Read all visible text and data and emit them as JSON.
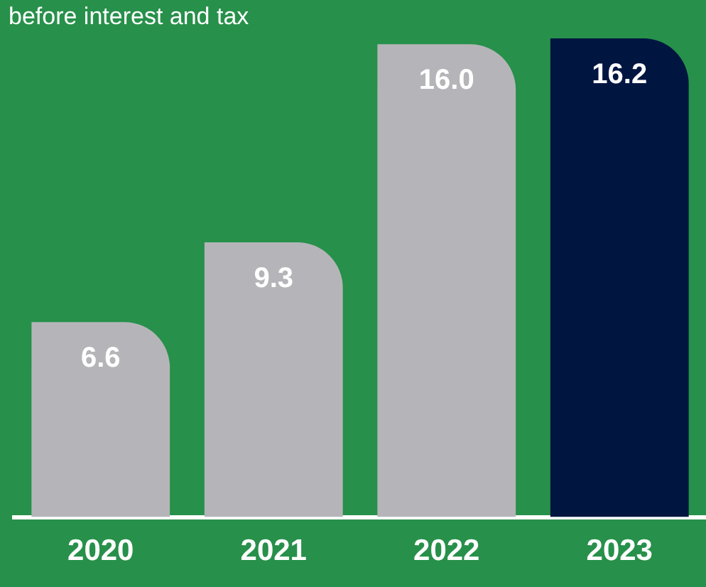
{
  "chart_data": {
    "type": "bar",
    "title": "before interest and tax",
    "categories": [
      "2020",
      "2021",
      "2022",
      "2023"
    ],
    "values": [
      6.6,
      9.3,
      16.0,
      16.2
    ],
    "value_labels": [
      "6.6",
      "9.3",
      "16.0",
      "16.2"
    ],
    "colors": [
      "#b5b5b9",
      "#b5b5b9",
      "#b5b5b9",
      "#001641"
    ],
    "grid": false,
    "legend": false
  }
}
